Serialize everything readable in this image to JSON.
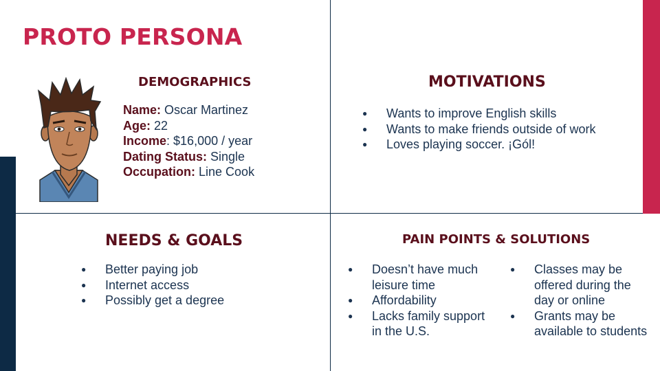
{
  "title": "PROTO PERSONA",
  "demographics": {
    "heading": "DEMOGRAPHICS",
    "fields": [
      {
        "label": "Name:",
        "value": " Oscar Martinez"
      },
      {
        "label": "Age:",
        "value": " 22"
      },
      {
        "label": "Income",
        "value": ": $16,000 / year"
      },
      {
        "label": "Dating Status:",
        "value": " Single"
      },
      {
        "label": "Occupation:",
        "value": " Line Cook"
      }
    ]
  },
  "motivations": {
    "heading": "MOTIVATIONS",
    "items": [
      "Wants to improve English skills",
      "Wants to make friends outside of work",
      "Loves playing soccer. ¡Gól!"
    ]
  },
  "needs_goals": {
    "heading": "NEEDS & GOALS",
    "items": [
      "Better paying job",
      "Internet access",
      "Possibly get a degree"
    ]
  },
  "pain_points": {
    "heading": "PAIN POINTS & SOLUTIONS",
    "problems": [
      "Doesn’t have much leisure time",
      "Affordability",
      "Lacks family support in the U.S."
    ],
    "solutions": [
      "Classes may be offered during the day or online",
      "Grants may be available to students"
    ]
  },
  "colors": {
    "title": "#c8254e",
    "heading": "#5a0f1c",
    "body_text": "#1b3350",
    "accent_red": "#c8254e",
    "accent_navy": "#0d2a45"
  },
  "icons": {
    "avatar": "cartoon-person-avatar"
  }
}
